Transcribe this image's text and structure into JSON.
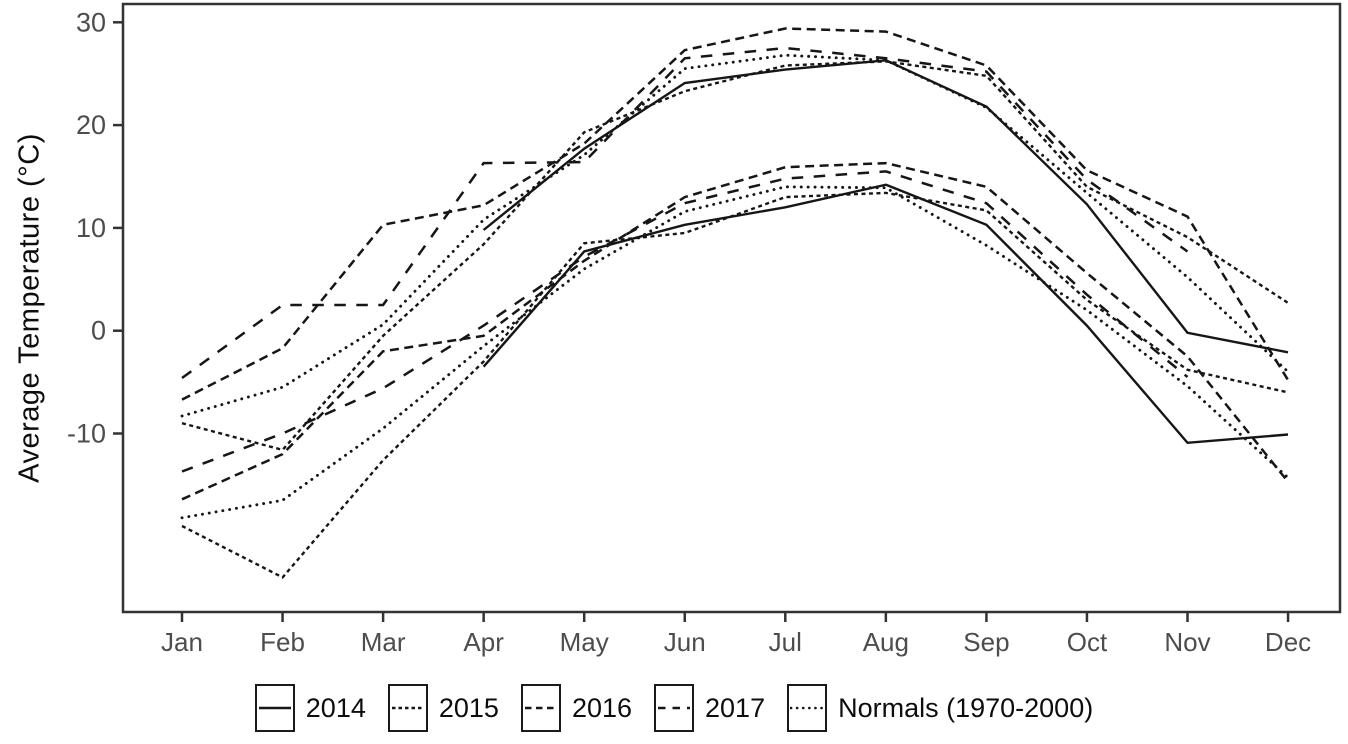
{
  "chart_data": {
    "type": "line",
    "title": "",
    "xlabel": "",
    "ylabel": "Average Temperature (°C)",
    "categories": [
      "Jan",
      "Feb",
      "Mar",
      "Apr",
      "May",
      "Jun",
      "Jul",
      "Aug",
      "Sep",
      "Oct",
      "Nov",
      "Dec"
    ],
    "y_ticks": [
      30,
      20,
      10,
      0,
      -10
    ],
    "ylim": [
      -27,
      32
    ],
    "grid": false,
    "legend_position": "bottom",
    "note": "Each series has two lines: monthly average maximum (upper band) and minimum (lower band) temperatures, in black line styles only.",
    "series": [
      {
        "name": "2014",
        "legend_label": "2014",
        "line_style": "solid",
        "values_max": [
          null,
          null,
          null,
          9.8,
          17.7,
          24.1,
          25.4,
          26.3,
          21.8,
          12.3,
          -0.2,
          -2.1
        ],
        "values_min": [
          null,
          null,
          null,
          -3.5,
          7.7,
          10.3,
          12.0,
          14.2,
          10.3,
          0.5,
          -10.9,
          -10.1
        ]
      },
      {
        "name": "2015",
        "legend_label": "2015",
        "line_style": "short-dash",
        "values_max": [
          -9.0,
          -11.6,
          -0.5,
          8.4,
          19.3,
          23.3,
          25.8,
          26.2,
          24.8,
          14.0,
          9.1,
          2.7
        ],
        "values_min": [
          -19.0,
          -24.0,
          -12.6,
          -3.0,
          8.5,
          9.5,
          13.0,
          13.4,
          11.7,
          3.0,
          -3.8,
          -6.0
        ]
      },
      {
        "name": "2016",
        "legend_label": "2016",
        "line_style": "medium-dash",
        "values_max": [
          -6.7,
          -1.7,
          10.3,
          12.2,
          18.2,
          27.3,
          29.4,
          29.1,
          25.8,
          15.6,
          11.1,
          -4.8
        ],
        "values_min": [
          -16.4,
          -12.0,
          -2.0,
          -0.5,
          6.8,
          13.0,
          15.9,
          16.3,
          14.0,
          5.6,
          -2.5,
          -14.7
        ]
      },
      {
        "name": "2017",
        "legend_label": "2017",
        "line_style": "long-dash",
        "values_max": [
          -4.6,
          2.5,
          2.5,
          16.3,
          16.4,
          26.5,
          27.5,
          26.5,
          25.2,
          14.7,
          7.7,
          null
        ],
        "values_min": [
          -13.7,
          -10.0,
          -5.6,
          0.5,
          7.2,
          12.4,
          14.8,
          15.5,
          12.4,
          3.5,
          -4.5,
          null
        ]
      },
      {
        "name": "Normals",
        "legend_label": "Normals (1970-2000)",
        "line_style": "dotted",
        "values_max": [
          -8.3,
          -5.5,
          0.6,
          10.8,
          17.1,
          25.5,
          26.8,
          26.3,
          21.7,
          13.4,
          5.2,
          -4.0
        ],
        "values_min": [
          -18.2,
          -16.5,
          -9.5,
          -1.5,
          6.0,
          11.6,
          14.0,
          13.9,
          8.3,
          2.0,
          -5.4,
          -14.3
        ]
      }
    ]
  },
  "colors": {
    "line": "#161616",
    "panel_border": "#333333",
    "tick_label": "#4d4d4d",
    "axis_title": "#0d0d0d",
    "background": "#ffffff"
  }
}
